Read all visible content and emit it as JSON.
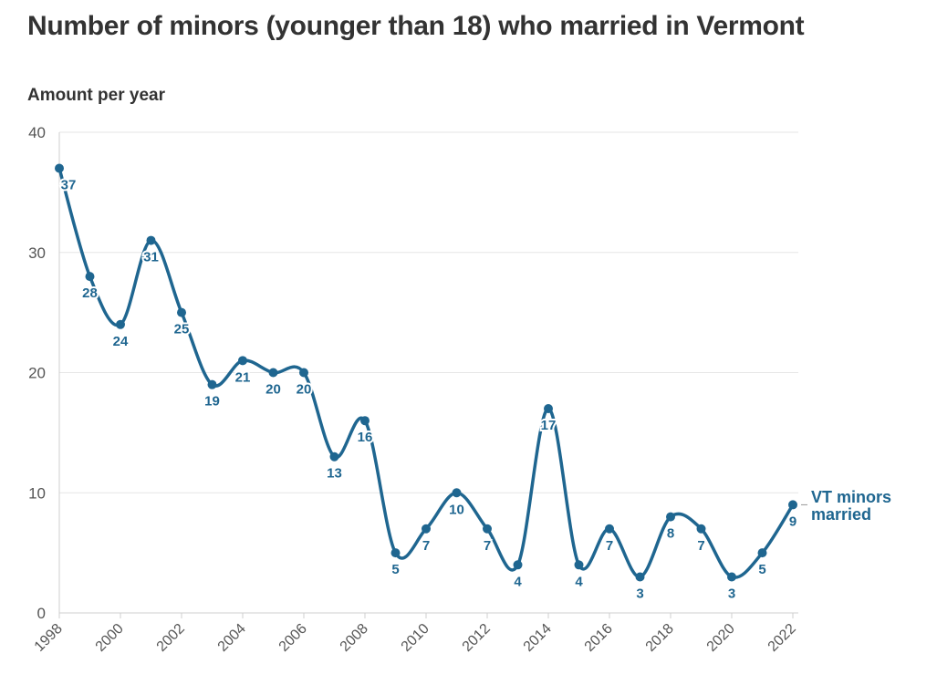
{
  "title": "Number of minors (younger than 18) who married in Vermont",
  "colors": {
    "series": "#1f6690",
    "grid": "#e6e6e6",
    "axis": "#cfcfcf",
    "text": "#333333"
  },
  "chart_data": {
    "type": "line",
    "title": "Number of minors (younger than 18) who married in Vermont",
    "ylabel": "Amount per year",
    "xlabel": "",
    "ylim": [
      0,
      40
    ],
    "yticks": [
      0,
      10,
      20,
      30,
      40
    ],
    "xlim": [
      1998,
      2022
    ],
    "xticks": [
      1998,
      2000,
      2002,
      2004,
      2006,
      2008,
      2010,
      2012,
      2014,
      2016,
      2018,
      2020,
      2022
    ],
    "grid": true,
    "series": [
      {
        "name": "VT minors married",
        "label_lines": [
          "VT minors",
          "married"
        ],
        "x": [
          1998,
          1999,
          2000,
          2001,
          2002,
          2003,
          2004,
          2005,
          2006,
          2007,
          2008,
          2009,
          2010,
          2011,
          2012,
          2013,
          2014,
          2015,
          2016,
          2017,
          2018,
          2019,
          2020,
          2021,
          2022
        ],
        "values": [
          37,
          28,
          24,
          31,
          25,
          19,
          21,
          20,
          20,
          13,
          16,
          5,
          7,
          10,
          7,
          4,
          17,
          4,
          7,
          3,
          8,
          7,
          3,
          5,
          9
        ]
      }
    ]
  }
}
